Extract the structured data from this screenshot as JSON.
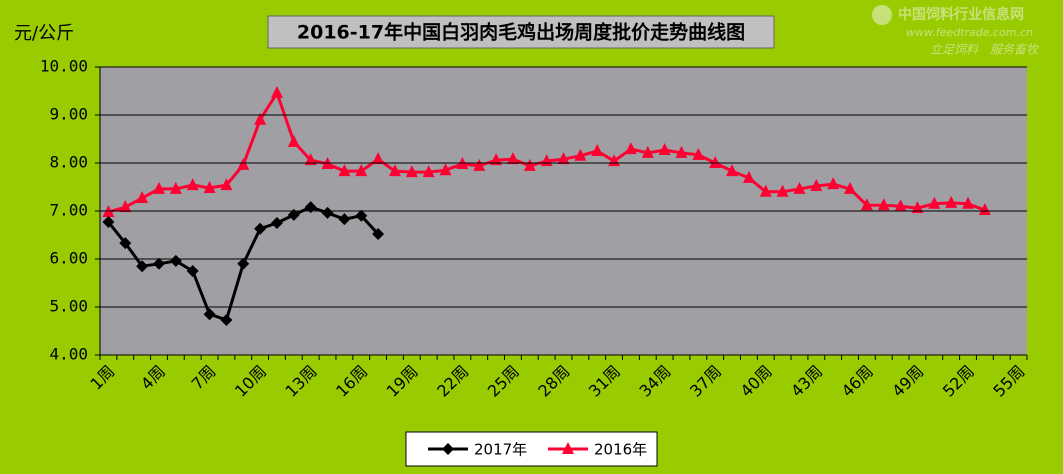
{
  "chart_data": {
    "type": "line",
    "title": "2016-17年中国白羽肉毛鸡出场周度批价走势曲线图",
    "y_label": "元/公斤",
    "watermark": {
      "name": "中国饲料行业信息网",
      "url": "www.feedtrade.com.cn",
      "slogan": "立足饲料　服务畜牧"
    },
    "categories": [
      "1周",
      null,
      null,
      "4周",
      null,
      null,
      "7周",
      null,
      null,
      "10周",
      null,
      null,
      "13周",
      null,
      null,
      "16周",
      null,
      null,
      "19周",
      null,
      null,
      "22周",
      null,
      null,
      "25周",
      null,
      null,
      "28周",
      null,
      null,
      "31周",
      null,
      null,
      "34周",
      null,
      null,
      "37周",
      null,
      null,
      "40周",
      null,
      null,
      "43周",
      null,
      null,
      "46周",
      null,
      null,
      "49周",
      null,
      null,
      "52周",
      null,
      null,
      "55周"
    ],
    "series": [
      {
        "name": "2017年",
        "color": "#000000",
        "marker": "diamond",
        "values": [
          6.77,
          6.33,
          5.85,
          5.9,
          5.96,
          5.75,
          4.85,
          4.73,
          5.9,
          6.63,
          6.75,
          6.92,
          7.08,
          6.96,
          6.83,
          6.9,
          6.52,
          null,
          null,
          null,
          null,
          null,
          null,
          null,
          null,
          null,
          null,
          null,
          null,
          null,
          null,
          null,
          null,
          null,
          null,
          null,
          null,
          null,
          null,
          null,
          null,
          null,
          null,
          null,
          null,
          null,
          null,
          null,
          null,
          null,
          null,
          null,
          null,
          null,
          null
        ]
      },
      {
        "name": "2016年",
        "color": "#ff0033",
        "marker": "triangle",
        "values": [
          6.98,
          7.08,
          7.27,
          7.46,
          7.46,
          7.54,
          7.48,
          7.54,
          7.96,
          8.9,
          9.46,
          8.44,
          8.06,
          7.98,
          7.83,
          7.83,
          8.08,
          7.83,
          7.81,
          7.81,
          7.85,
          7.98,
          7.94,
          8.06,
          8.08,
          7.94,
          8.04,
          8.08,
          8.15,
          8.25,
          8.04,
          8.29,
          8.21,
          8.27,
          8.21,
          8.17,
          8.0,
          7.83,
          7.69,
          7.4,
          7.4,
          7.46,
          7.52,
          7.56,
          7.46,
          7.12,
          7.12,
          7.1,
          7.06,
          7.15,
          7.17,
          7.15,
          7.02,
          null,
          null
        ]
      }
    ],
    "ylim": [
      4,
      10
    ],
    "yticks": [
      {
        "value": 4,
        "label": "4.00"
      },
      {
        "value": 5,
        "label": "5.00"
      },
      {
        "value": 6,
        "label": "6.00"
      },
      {
        "value": 7,
        "label": "7.00"
      },
      {
        "value": 8,
        "label": "8.00"
      },
      {
        "value": 9,
        "label": "9.00"
      },
      {
        "value": 10,
        "label": "10.00"
      }
    ],
    "grid": true,
    "legend": "bottom",
    "background": "#99cc00",
    "plot_background": "#a0a0a4"
  }
}
